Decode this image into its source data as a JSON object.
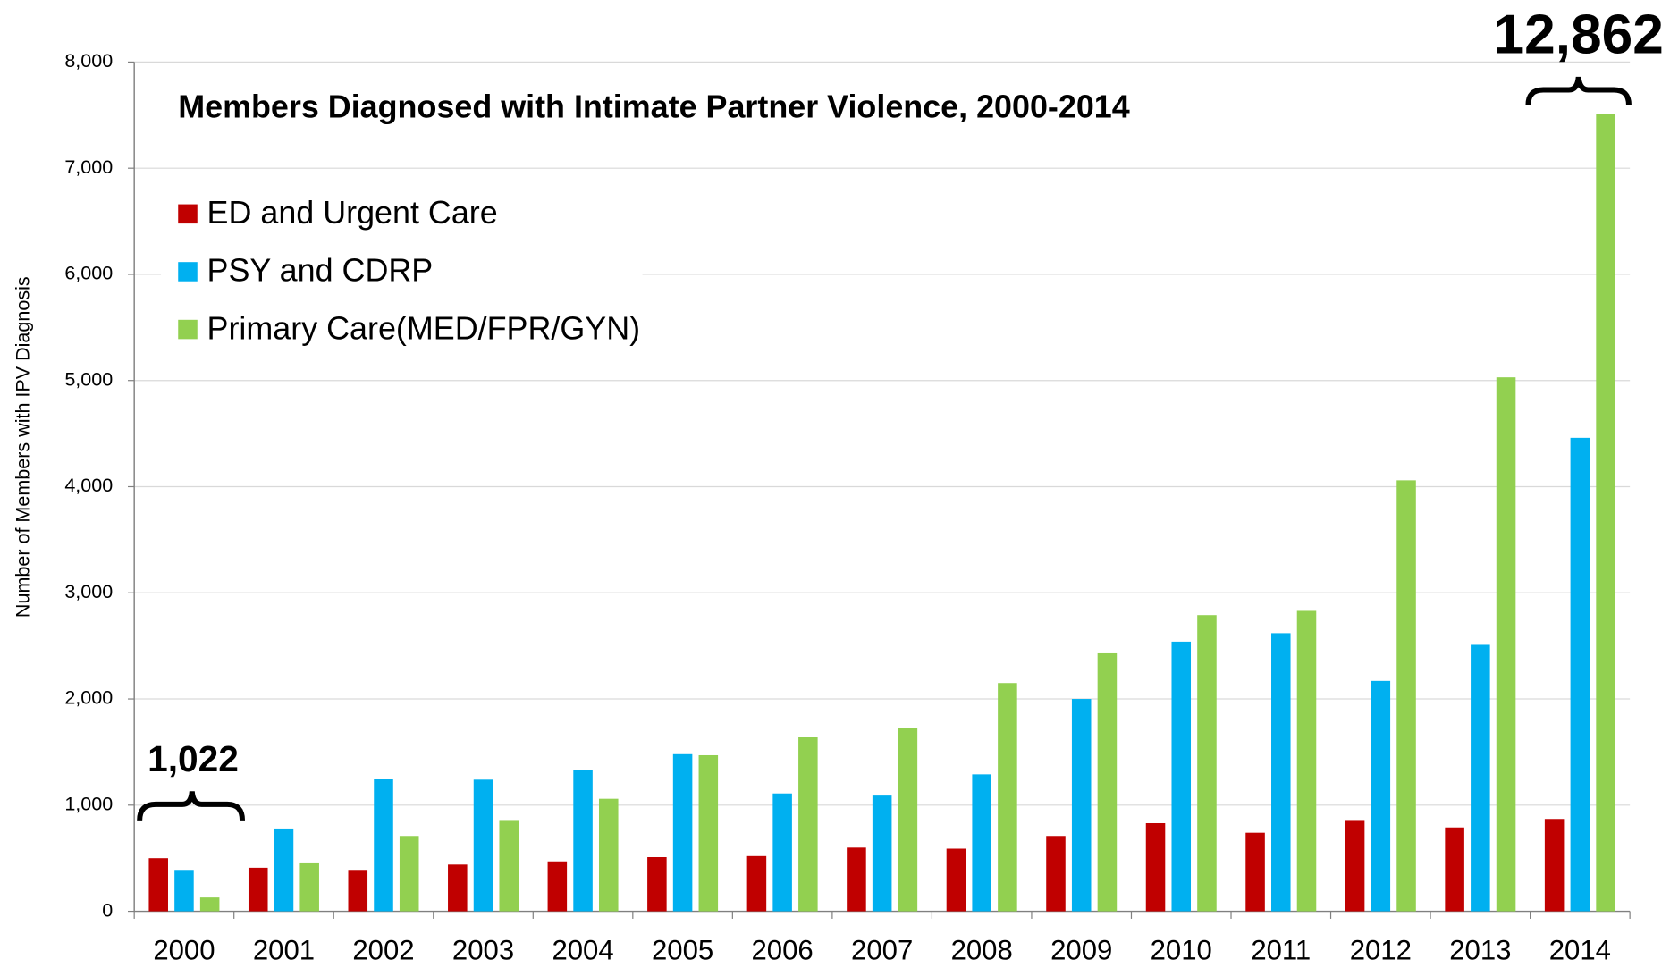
{
  "chart_data": {
    "type": "bar",
    "title": "Members Diagnosed with Intimate Partner Violence, 2000-2014",
    "y_label": "Number of Members with IPV Diagnosis",
    "categories": [
      "2000",
      "2001",
      "2002",
      "2003",
      "2004",
      "2005",
      "2006",
      "2007",
      "2008",
      "2009",
      "2010",
      "2011",
      "2012",
      "2013",
      "2014"
    ],
    "series": [
      {
        "name": "ED and Urgent Care",
        "color": "#c00000",
        "values": [
          500,
          410,
          390,
          440,
          470,
          510,
          520,
          600,
          590,
          710,
          830,
          740,
          860,
          790,
          870
        ]
      },
      {
        "name": "PSY and CDRP",
        "color": "#00b0f0",
        "values": [
          390,
          780,
          1250,
          1240,
          1330,
          1480,
          1110,
          1090,
          1290,
          2000,
          2540,
          2620,
          2170,
          2510,
          4460
        ]
      },
      {
        "name": "Primary Care(MED/FPR/GYN)",
        "color": "#92d050",
        "values": [
          130,
          460,
          710,
          860,
          1060,
          1470,
          1640,
          1730,
          2150,
          2430,
          2790,
          2830,
          4060,
          5030,
          7510
        ]
      }
    ],
    "ylim": [
      0,
      8000
    ],
    "yticks": [
      0,
      {
        "value": 1000,
        "label": "1,000"
      },
      {
        "value": 2000,
        "label": "2,000"
      },
      {
        "value": 3000,
        "label": "3,000"
      },
      {
        "value": 4000,
        "label": "4,000"
      },
      {
        "value": 5000,
        "label": "5,000"
      },
      {
        "value": 6000,
        "label": "6,000"
      },
      {
        "value": 7000,
        "label": "7,000"
      },
      {
        "value": 8000,
        "label": "8,000"
      }
    ],
    "grid": true,
    "legend": "upper left",
    "annotations": [
      {
        "text": "1,022"
      },
      {
        "text": "12,862"
      }
    ]
  }
}
